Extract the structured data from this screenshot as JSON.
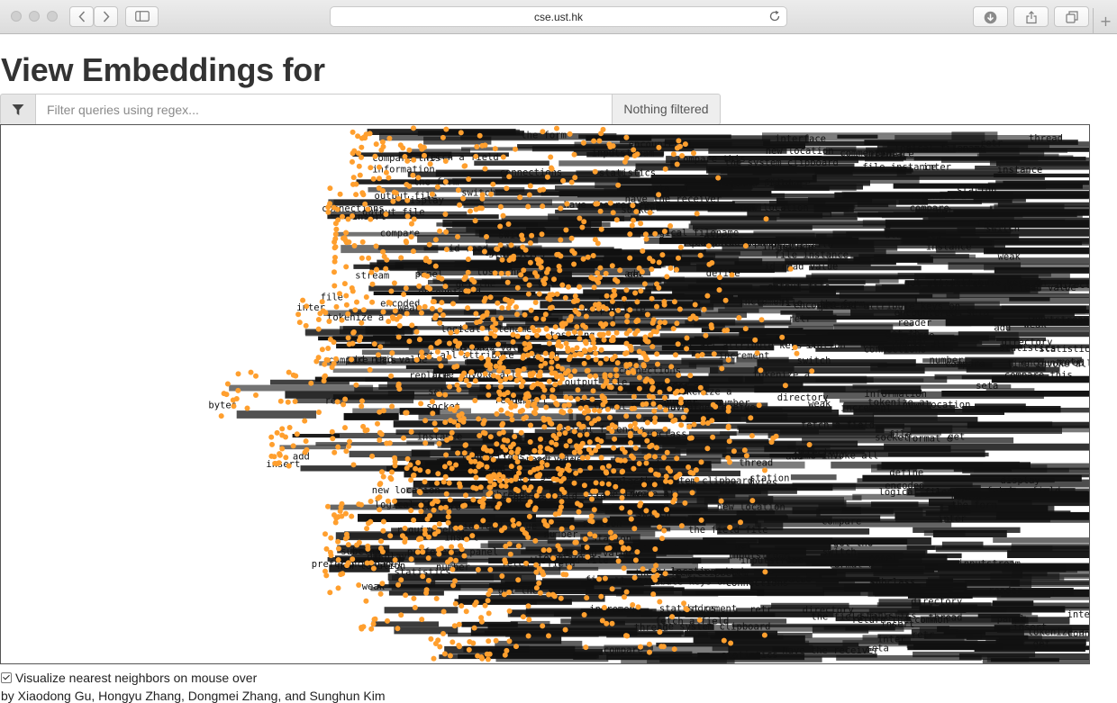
{
  "browser": {
    "url": "cse.ust.hk",
    "icons": [
      "close-icon",
      "minimize-icon",
      "zoom-icon",
      "back-arrow-icon",
      "forward-arrow-icon",
      "sidebar-icon",
      "reload-icon",
      "download-icon",
      "share-icon",
      "tabs-icon",
      "plus-icon"
    ]
  },
  "page": {
    "title": "View Embeddings for",
    "filter": {
      "icon": "filter-icon",
      "placeholder": "Filter queries using regex...",
      "status": "Nothing filtered"
    },
    "options": {
      "nearest_neighbors_label": "Visualize nearest neighbors on mouse over",
      "nearest_neighbors_checked": true
    },
    "authors": "by Xiaodong Gu, Hongyu Zhang, Dongmei Zhang, and Sunghun Kim"
  },
  "embedding": {
    "point_color": "#ff9f2e",
    "label_color": "#111111",
    "labels": [
      "get all attribute keys on",
      "return the common",
      "retr",
      "get the",
      "fetch a field",
      "get th",
      "compare this",
      "compare",
      "tokenize a",
      "time invoke all",
      "insert",
      "add",
      "inter",
      "set",
      "seta",
      "replace",
      "increment",
      "define",
      "weak",
      "get",
      "parse",
      "encountered",
      "interface",
      "logical filename",
      "the system clipboard",
      "statistics",
      "number",
      "format e",
      "tostring",
      "panel",
      "switch",
      "socket",
      "the field file",
      "thread",
      "inputstream",
      "directory",
      "have the receiver",
      "station",
      "preference panel",
      "output file",
      "stream",
      "reader",
      "format",
      "encoded",
      "file instance",
      "comments",
      "new location",
      "bytes",
      "information",
      "display",
      "file",
      "requirements",
      "instance",
      "the form",
      "id read value",
      "subclass",
      "connections"
    ]
  }
}
